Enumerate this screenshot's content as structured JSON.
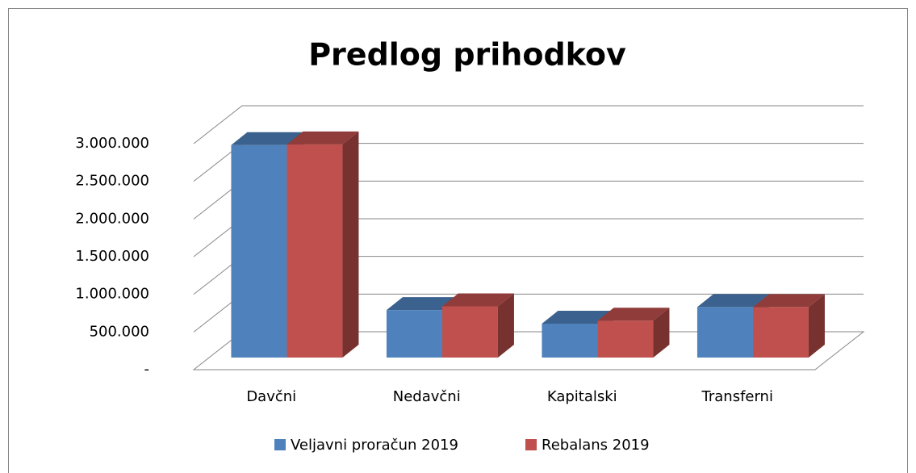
{
  "chart_data": {
    "type": "bar3d",
    "title": "Predlog prihodkov",
    "categories": [
      "Davčni",
      "Nedavčni",
      "Kapitalski",
      "Transferni"
    ],
    "series": [
      {
        "name": "Veljavni proračun 2019",
        "color": "#4f81bd",
        "values": [
          2820000,
          630000,
          450000,
          670000
        ]
      },
      {
        "name": "Rebalans 2019",
        "color": "#c0504d",
        "values": [
          2830000,
          680000,
          490000,
          670000
        ]
      }
    ],
    "ylim": [
      0,
      3000000
    ],
    "yticks": [
      {
        "value": 0,
        "label": "-"
      },
      {
        "value": 500000,
        "label": "500.000"
      },
      {
        "value": 1000000,
        "label": "1.000.000"
      },
      {
        "value": 1500000,
        "label": "1.500.000"
      },
      {
        "value": 2000000,
        "label": "2.000.000"
      },
      {
        "value": 2500000,
        "label": "2.500.000"
      },
      {
        "value": 3000000,
        "label": "3.000.000"
      }
    ],
    "grid": true,
    "legend": "bottom"
  }
}
